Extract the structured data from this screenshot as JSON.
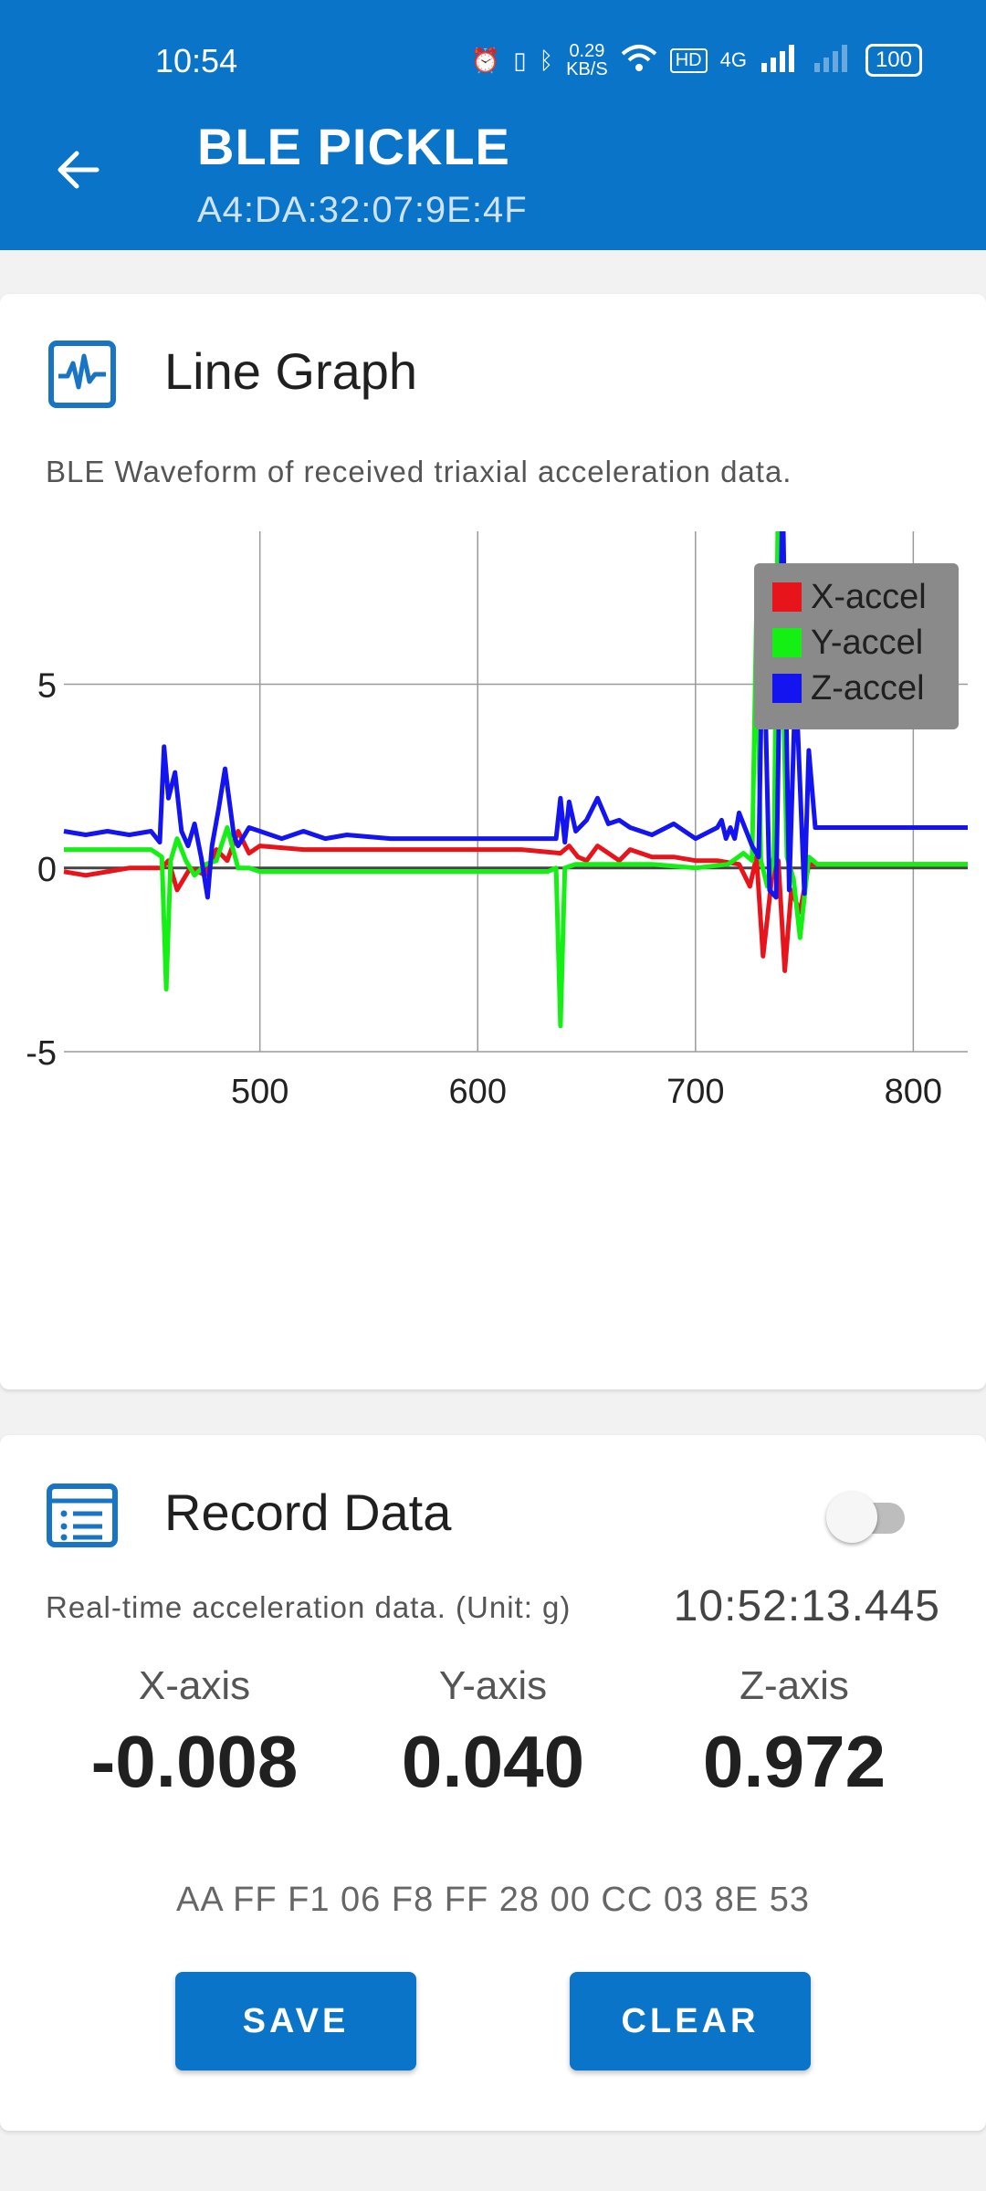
{
  "status_bar": {
    "time": "10:54",
    "net_speed": "0.29",
    "net_unit": "KB/S",
    "network": "4G",
    "battery": "100"
  },
  "app_bar": {
    "title": "BLE PICKLE",
    "subtitle": "A4:DA:32:07:9E:4F",
    "back_icon": "arrow-left-icon"
  },
  "graph_card": {
    "title": "Line Graph",
    "icon": "waveform-icon",
    "description": "BLE Waveform of received triaxial acceleration data."
  },
  "chart_data": {
    "type": "line",
    "xlim": [
      410,
      825
    ],
    "ylim": [
      -5,
      15
    ],
    "xticks": [
      500,
      600,
      700,
      800
    ],
    "yticks": [
      -5,
      0,
      5,
      10,
      15
    ],
    "grid": true,
    "legend_position": "top-right",
    "series": [
      {
        "name": "X-accel",
        "color": "#e8141b",
        "x": [
          410,
          420,
          440,
          455,
          458,
          462,
          468,
          475,
          480,
          485,
          490,
          495,
          500,
          520,
          540,
          560,
          580,
          600,
          620,
          638,
          642,
          646,
          650,
          655,
          660,
          665,
          670,
          680,
          690,
          700,
          710,
          720,
          725,
          728,
          731,
          735,
          738,
          741,
          744,
          748,
          752,
          758,
          800,
          825
        ],
        "y": [
          -0.1,
          -0.2,
          0,
          0,
          0.2,
          -0.6,
          0,
          -0.2,
          0.5,
          0.2,
          1.0,
          0.4,
          0.6,
          0.5,
          0.5,
          0.5,
          0.5,
          0.5,
          0.5,
          0.4,
          0.6,
          0.3,
          0.2,
          0.6,
          0.4,
          0.2,
          0.5,
          0.3,
          0.3,
          0.2,
          0.2,
          0.1,
          -0.5,
          0.3,
          -2.4,
          -0.3,
          0.2,
          -2.8,
          -0.6,
          -1.2,
          0.1,
          0.1,
          0.1,
          0.1
        ]
      },
      {
        "name": "Y-accel",
        "color": "#14f014",
        "x": [
          410,
          420,
          440,
          450,
          455,
          457,
          459,
          462,
          466,
          470,
          475,
          480,
          485,
          490,
          495,
          500,
          520,
          540,
          560,
          580,
          600,
          620,
          632,
          636,
          638,
          640,
          645,
          660,
          680,
          700,
          715,
          722,
          726,
          728,
          730,
          733,
          736,
          738,
          742,
          745,
          748,
          752,
          756,
          760,
          800,
          825
        ],
        "y": [
          0.5,
          0.5,
          0.5,
          0.5,
          0.3,
          -3.3,
          0.2,
          0.8,
          0.2,
          -0.2,
          0.1,
          0.2,
          1.1,
          0,
          0,
          -0.1,
          -0.1,
          -0.1,
          -0.1,
          -0.1,
          -0.1,
          -0.1,
          -0.1,
          0,
          -4.3,
          0,
          0.1,
          0.1,
          0.1,
          0,
          0.1,
          0.4,
          0.2,
          7.0,
          0.2,
          -0.5,
          0.3,
          10.5,
          0.3,
          -0.3,
          -1.9,
          0.3,
          0.1,
          0.1,
          0.1,
          0.1
        ]
      },
      {
        "name": "Z-accel",
        "color": "#1414f0",
        "x": [
          410,
          420,
          430,
          440,
          450,
          454,
          456,
          458,
          461,
          464,
          467,
          470,
          473,
          476,
          478,
          481,
          484,
          488,
          490,
          495,
          500,
          510,
          520,
          530,
          540,
          560,
          580,
          600,
          620,
          636,
          638,
          640,
          642,
          645,
          650,
          655,
          660,
          665,
          670,
          680,
          690,
          700,
          710,
          712,
          714,
          716,
          718,
          720,
          726,
          729,
          731,
          734,
          737,
          740,
          743,
          746,
          750,
          752,
          755,
          760,
          800,
          825
        ],
        "y": [
          1.0,
          0.9,
          1.0,
          0.9,
          1.0,
          0.7,
          3.3,
          1.9,
          2.6,
          1.0,
          0.6,
          1.2,
          0.3,
          -0.8,
          0.6,
          1.6,
          2.7,
          0.9,
          0.6,
          1.1,
          1.0,
          0.8,
          1.0,
          0.8,
          0.9,
          0.8,
          0.8,
          0.8,
          0.8,
          0.8,
          1.9,
          0.7,
          1.8,
          1.0,
          1.3,
          1.9,
          1.2,
          1.3,
          1.1,
          0.9,
          1.2,
          0.8,
          1.1,
          1.3,
          0.8,
          1.1,
          0.8,
          1.5,
          0.6,
          0.3,
          7.2,
          -0.6,
          -0.8,
          10.4,
          -0.6,
          5.2,
          -0.7,
          3.2,
          1.1,
          1.1,
          1.1,
          1.1
        ]
      }
    ]
  },
  "record_card": {
    "title": "Record Data",
    "icon": "list-document-icon",
    "description": "Real-time acceleration data. (Unit: g)",
    "timestamp": "10:52:13.445",
    "toggle_on": false,
    "axes": [
      {
        "label": "X-axis",
        "value": "-0.008"
      },
      {
        "label": "Y-axis",
        "value": "0.040"
      },
      {
        "label": "Z-axis",
        "value": "0.972"
      }
    ],
    "raw_hex": "AA FF F1 06 F8 FF 28 00 CC 03 8E 53",
    "save_label": "SAVE",
    "clear_label": "CLEAR"
  }
}
